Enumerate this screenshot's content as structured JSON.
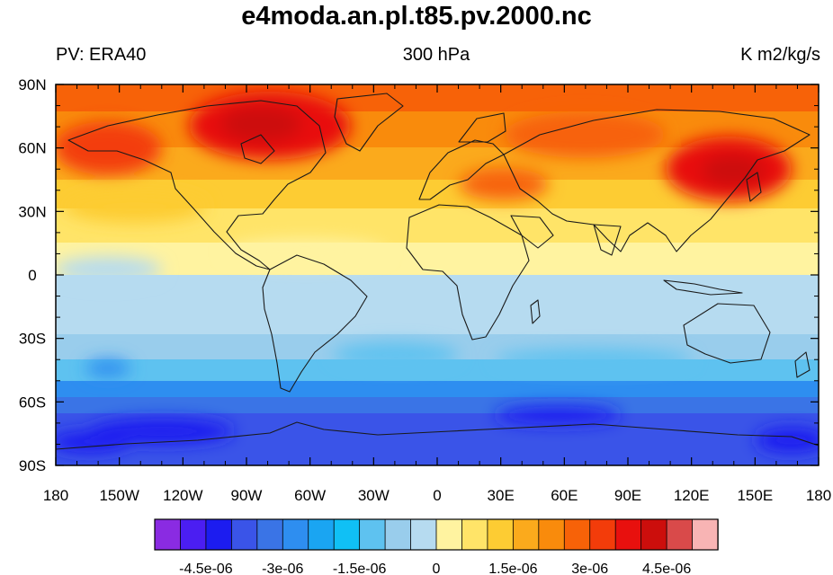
{
  "title": "e4moda.an.pl.t85.pv.2000.nc",
  "subtitle": {
    "left": "PV: ERA40",
    "center": "300 hPa",
    "right": "K m2/kg/s"
  },
  "chart_data": {
    "type": "heatmap",
    "projection": "cylindrical equidistant world map",
    "variable": "PV: ERA40",
    "level": "300 hPa",
    "units": "K m2/kg/s",
    "xaxis": {
      "range": [
        -180,
        180
      ],
      "ticks": [
        -180,
        -150,
        -120,
        -90,
        -60,
        -30,
        0,
        30,
        60,
        90,
        120,
        150,
        180
      ],
      "tick_labels": [
        "180",
        "150W",
        "120W",
        "90W",
        "60W",
        "30W",
        "0",
        "30E",
        "60E",
        "90E",
        "120E",
        "150E",
        "180"
      ]
    },
    "yaxis": {
      "range": [
        -90,
        90
      ],
      "ticks": [
        -90,
        -60,
        -30,
        0,
        30,
        60,
        90
      ],
      "tick_labels": [
        "90S",
        "60S",
        "30S",
        "0",
        "30N",
        "60N",
        "90N"
      ]
    },
    "colorbar": {
      "orientation": "horizontal",
      "colors": [
        "#8a2be2",
        "#4b1ef2",
        "#1c1cf0",
        "#3a54e8",
        "#3a74e6",
        "#2e8ef0",
        "#1aa5f2",
        "#10c0f5",
        "#5ec2f0",
        "#99cdec",
        "#b6dbf0",
        "#fff3a0",
        "#ffe468",
        "#fdcc33",
        "#fbaa1c",
        "#f98b0c",
        "#f76208",
        "#f33c0a",
        "#e8100e",
        "#cc0e0c",
        "#d94a4a",
        "#f8b4b4"
      ],
      "label_values": [
        -4.5e-06,
        -3e-06,
        -1.5e-06,
        0,
        1.5e-06,
        3e-06,
        4.5e-06
      ],
      "labels": [
        "-4.5e-06",
        "-3e-06",
        "-1.5e-06",
        "0",
        "1.5e-06",
        "3e-06",
        "4.5e-06"
      ]
    },
    "field_description": "Positive PV in Northern Hemisphere (yellow near equator, orange to red at high latitudes, strongest over Canada and East Asia); negative PV in Southern Hemisphere (light blue in subtropics to dark blue near Antarctica)"
  }
}
